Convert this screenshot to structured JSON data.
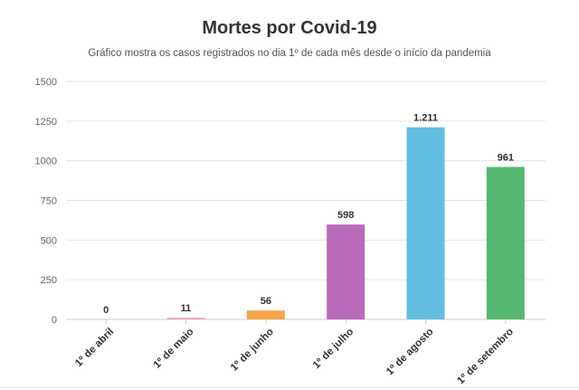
{
  "chart_data": {
    "type": "bar",
    "title": "Mortes por Covid-19",
    "subtitle": "Gráfico mostra os casos registrados no dia 1º de cada mês desde o início da pandemia",
    "categories": [
      "1º de abril",
      "1º de maio",
      "1º de junho",
      "1º de julho",
      "1º de agosto",
      "1º de setembro"
    ],
    "values": [
      0,
      11,
      56,
      598,
      1211,
      961
    ],
    "data_labels": [
      "0",
      "11",
      "56",
      "598",
      "1.211",
      "961"
    ],
    "colors": [
      "#cccccc",
      "#f0a8c8",
      "#f5a54a",
      "#b86bb8",
      "#62bde0",
      "#56b870"
    ],
    "ylim": [
      0,
      1500
    ],
    "yticks": [
      0,
      250,
      500,
      750,
      1000,
      1250,
      1500
    ],
    "ytick_labels": [
      "0",
      "250",
      "500",
      "750",
      "1000",
      "1250",
      "1500"
    ],
    "xlabel": "",
    "ylabel": "",
    "grid": true,
    "legend": "none"
  }
}
